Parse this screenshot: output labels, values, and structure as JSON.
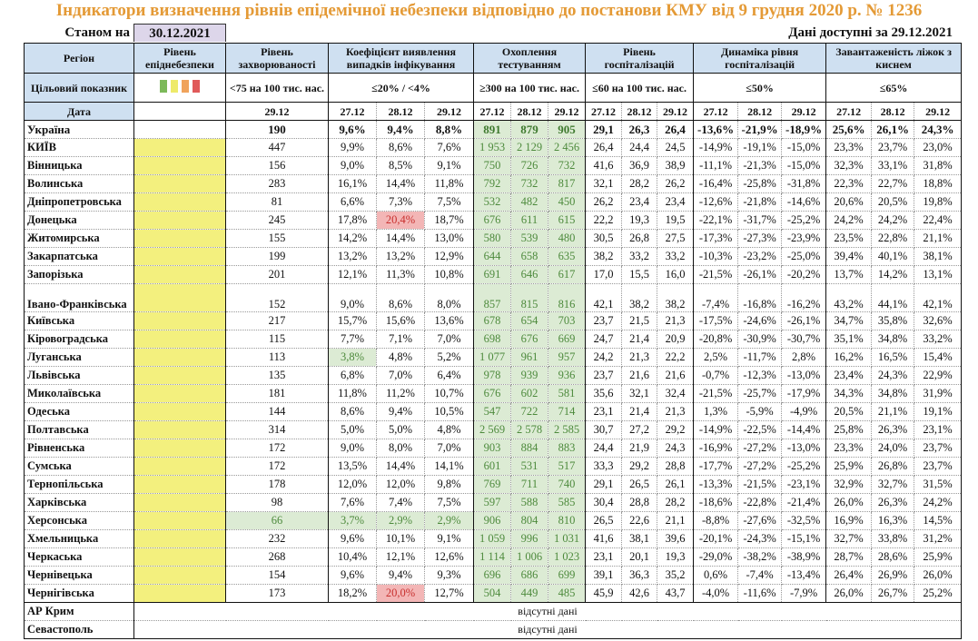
{
  "title": "Індикатори визначення рівнів епідемічної небезпеки відповідно до постанови КМУ від 9 грудня 2020 р. № 1236",
  "as_of_label": "Станом на",
  "as_of_date": "30.12.2021",
  "available_label": "Дані доступні за  29.12.2021",
  "colors": {
    "title": "#e49a36",
    "yellow": "#f3f07e",
    "green_fill": "#dcebd4",
    "red_fill": "#f3b6b6",
    "header": "#cfe0f1",
    "legend": [
      "#7cb95a",
      "#eeea6a",
      "#f0a35c",
      "#e05a5a"
    ]
  },
  "headers": {
    "region": "Регіон",
    "level": "Рівень епіднебезпеки",
    "incidence": "Рівень захворюваності",
    "coef": "Коефіцієнт виявлення випадків інфікування",
    "testing": "Охоплення тестуванням",
    "hosp": "Рівень госпіталізацій",
    "dyn": "Динаміка рівня госпіталізацій",
    "beds": "Завантаженість ліжок з киснем",
    "target_label": "Цільовий показник",
    "target_incidence": "<75 на 100 тис. нас.",
    "target_coef": "≤20% / <4%",
    "target_testing": "≥300 на 100 тис. нас.",
    "target_hosp": "≤60 на 100 тис. нас.",
    "target_dyn": "≤50%",
    "target_beds": "≤65%",
    "date_label": "Дата",
    "incidence_date": "29.12",
    "dates": [
      "27.12",
      "28.12",
      "29.12"
    ]
  },
  "ukraine": {
    "name": "Україна",
    "incidence": "190",
    "coef": [
      "9,6%",
      "9,4%",
      "8,8%"
    ],
    "testing": [
      "891",
      "879",
      "905"
    ],
    "hosp": [
      "29,1",
      "26,3",
      "26,4"
    ],
    "dyn": [
      "-13,6%",
      "-21,9%",
      "-18,9%"
    ],
    "beds": [
      "25,6%",
      "26,1%",
      "24,3%"
    ]
  },
  "regions": [
    {
      "name": "КИЇВ",
      "incidence": "447",
      "coef": [
        "9,9%",
        "8,6%",
        "7,6%"
      ],
      "testing": [
        "1 953",
        "2 129",
        "2 456"
      ],
      "hosp": [
        "26,4",
        "24,4",
        "24,5"
      ],
      "dyn": [
        "-14,9%",
        "-19,1%",
        "-15,0%"
      ],
      "beds": [
        "23,3%",
        "23,7%",
        "23,0%"
      ]
    },
    {
      "name": "Вінницька",
      "incidence": "156",
      "coef": [
        "9,0%",
        "8,5%",
        "9,1%"
      ],
      "testing": [
        "750",
        "726",
        "732"
      ],
      "hosp": [
        "41,6",
        "36,9",
        "38,9"
      ],
      "dyn": [
        "-11,1%",
        "-21,3%",
        "-15,0%"
      ],
      "beds": [
        "32,3%",
        "33,1%",
        "31,8%"
      ]
    },
    {
      "name": "Волинська",
      "incidence": "283",
      "coef": [
        "16,1%",
        "14,4%",
        "11,8%"
      ],
      "testing": [
        "792",
        "732",
        "817"
      ],
      "hosp": [
        "32,1",
        "28,2",
        "26,2"
      ],
      "dyn": [
        "-16,4%",
        "-25,8%",
        "-31,8%"
      ],
      "beds": [
        "22,3%",
        "22,7%",
        "18,8%"
      ]
    },
    {
      "name": "Дніпропетровська",
      "incidence": "81",
      "coef": [
        "6,6%",
        "7,3%",
        "7,5%"
      ],
      "testing": [
        "532",
        "482",
        "450"
      ],
      "hosp": [
        "26,2",
        "23,4",
        "23,4"
      ],
      "dyn": [
        "-12,6%",
        "-21,8%",
        "-14,6%"
      ],
      "beds": [
        "20,6%",
        "20,5%",
        "19,8%"
      ]
    },
    {
      "name": "Донецька",
      "incidence": "245",
      "coef": [
        "17,8%",
        "20,4%",
        "18,7%"
      ],
      "coef_flags": [
        "",
        "red",
        ""
      ],
      "testing": [
        "676",
        "611",
        "615"
      ],
      "hosp": [
        "22,2",
        "19,3",
        "19,5"
      ],
      "dyn": [
        "-22,1%",
        "-31,7%",
        "-25,2%"
      ],
      "beds": [
        "24,2%",
        "24,2%",
        "22,4%"
      ]
    },
    {
      "name": "Житомирська",
      "incidence": "155",
      "coef": [
        "14,2%",
        "14,4%",
        "13,0%"
      ],
      "testing": [
        "580",
        "539",
        "480"
      ],
      "hosp": [
        "30,5",
        "26,8",
        "27,5"
      ],
      "dyn": [
        "-17,3%",
        "-27,3%",
        "-23,9%"
      ],
      "beds": [
        "23,5%",
        "22,8%",
        "21,1%"
      ]
    },
    {
      "name": "Закарпатська",
      "incidence": "199",
      "coef": [
        "13,2%",
        "13,2%",
        "12,9%"
      ],
      "testing": [
        "644",
        "658",
        "635"
      ],
      "hosp": [
        "38,2",
        "33,2",
        "33,2"
      ],
      "dyn": [
        "-10,3%",
        "-23,2%",
        "-25,0%"
      ],
      "beds": [
        "39,4%",
        "40,1%",
        "38,1%"
      ]
    },
    {
      "name": "Запорізька",
      "incidence": "201",
      "coef": [
        "12,1%",
        "11,3%",
        "10,8%"
      ],
      "testing": [
        "691",
        "646",
        "617"
      ],
      "hosp": [
        "17,0",
        "15,5",
        "16,0"
      ],
      "dyn": [
        "-21,5%",
        "-26,1%",
        "-20,2%"
      ],
      "beds": [
        "13,7%",
        "14,2%",
        "13,1%"
      ]
    },
    {
      "name": "Івано-Франківська",
      "tall": true,
      "incidence": "152",
      "coef": [
        "9,0%",
        "8,6%",
        "8,0%"
      ],
      "testing": [
        "857",
        "815",
        "816"
      ],
      "hosp": [
        "42,1",
        "38,2",
        "38,2"
      ],
      "dyn": [
        "-7,4%",
        "-16,8%",
        "-16,2%"
      ],
      "beds": [
        "43,2%",
        "44,1%",
        "42,1%"
      ]
    },
    {
      "name": "Київська",
      "incidence": "217",
      "coef": [
        "15,7%",
        "15,6%",
        "13,6%"
      ],
      "testing": [
        "678",
        "654",
        "703"
      ],
      "hosp": [
        "23,7",
        "21,5",
        "21,3"
      ],
      "dyn": [
        "-17,5%",
        "-24,6%",
        "-26,1%"
      ],
      "beds": [
        "34,7%",
        "35,8%",
        "32,6%"
      ]
    },
    {
      "name": "Кіровоградська",
      "incidence": "115",
      "coef": [
        "7,7%",
        "7,1%",
        "7,0%"
      ],
      "testing": [
        "698",
        "676",
        "669"
      ],
      "hosp": [
        "24,7",
        "21,4",
        "20,9"
      ],
      "dyn": [
        "-20,8%",
        "-30,9%",
        "-30,7%"
      ],
      "beds": [
        "35,1%",
        "34,8%",
        "33,2%"
      ]
    },
    {
      "name": "Луганська",
      "incidence": "113",
      "coef": [
        "3,8%",
        "4,8%",
        "5,2%"
      ],
      "coef_flags": [
        "green",
        "",
        ""
      ],
      "testing": [
        "1 077",
        "961",
        "957"
      ],
      "hosp": [
        "24,2",
        "21,3",
        "22,2"
      ],
      "dyn": [
        "2,5%",
        "-11,7%",
        "2,8%"
      ],
      "beds": [
        "16,2%",
        "16,5%",
        "15,4%"
      ]
    },
    {
      "name": "Львівська",
      "incidence": "135",
      "coef": [
        "6,8%",
        "7,0%",
        "6,4%"
      ],
      "testing": [
        "978",
        "939",
        "936"
      ],
      "hosp": [
        "23,7",
        "21,6",
        "21,6"
      ],
      "dyn": [
        "-0,7%",
        "-12,3%",
        "-13,0%"
      ],
      "beds": [
        "23,4%",
        "24,3%",
        "22,9%"
      ]
    },
    {
      "name": "Миколаївська",
      "incidence": "181",
      "coef": [
        "11,8%",
        "11,2%",
        "10,7%"
      ],
      "testing": [
        "676",
        "602",
        "581"
      ],
      "hosp": [
        "35,6",
        "32,1",
        "32,4"
      ],
      "dyn": [
        "-21,5%",
        "-25,7%",
        "-17,9%"
      ],
      "beds": [
        "34,3%",
        "34,8%",
        "31,9%"
      ]
    },
    {
      "name": "Одеська",
      "incidence": "144",
      "coef": [
        "8,6%",
        "9,4%",
        "10,5%"
      ],
      "testing": [
        "547",
        "722",
        "714"
      ],
      "hosp": [
        "23,1",
        "21,4",
        "21,3"
      ],
      "dyn": [
        "1,3%",
        "-5,9%",
        "-4,9%"
      ],
      "beds": [
        "20,5%",
        "21,1%",
        "19,1%"
      ]
    },
    {
      "name": "Полтавська",
      "incidence": "314",
      "coef": [
        "5,0%",
        "5,0%",
        "4,8%"
      ],
      "testing": [
        "2 569",
        "2 578",
        "2 585"
      ],
      "hosp": [
        "30,7",
        "27,2",
        "29,2"
      ],
      "dyn": [
        "-14,9%",
        "-22,5%",
        "-14,4%"
      ],
      "beds": [
        "25,8%",
        "26,3%",
        "23,1%"
      ]
    },
    {
      "name": "Рівненська",
      "incidence": "172",
      "coef": [
        "9,0%",
        "8,0%",
        "7,0%"
      ],
      "testing": [
        "903",
        "884",
        "883"
      ],
      "hosp": [
        "24,4",
        "21,9",
        "24,3"
      ],
      "dyn": [
        "-16,9%",
        "-27,2%",
        "-13,0%"
      ],
      "beds": [
        "23,3%",
        "24,0%",
        "23,7%"
      ]
    },
    {
      "name": "Сумська",
      "incidence": "172",
      "coef": [
        "13,5%",
        "14,4%",
        "14,1%"
      ],
      "testing": [
        "601",
        "531",
        "517"
      ],
      "hosp": [
        "33,3",
        "29,2",
        "28,8"
      ],
      "dyn": [
        "-17,7%",
        "-27,2%",
        "-25,2%"
      ],
      "beds": [
        "25,9%",
        "26,8%",
        "23,7%"
      ]
    },
    {
      "name": "Тернопільська",
      "incidence": "178",
      "coef": [
        "12,0%",
        "12,0%",
        "9,8%"
      ],
      "testing": [
        "769",
        "711",
        "740"
      ],
      "hosp": [
        "29,1",
        "26,5",
        "26,1"
      ],
      "dyn": [
        "-13,3%",
        "-21,5%",
        "-23,1%"
      ],
      "beds": [
        "32,9%",
        "32,7%",
        "31,5%"
      ]
    },
    {
      "name": "Харківська",
      "incidence": "98",
      "coef": [
        "7,6%",
        "7,4%",
        "7,5%"
      ],
      "testing": [
        "597",
        "588",
        "585"
      ],
      "hosp": [
        "30,4",
        "28,8",
        "28,2"
      ],
      "dyn": [
        "-18,6%",
        "-22,8%",
        "-21,4%"
      ],
      "beds": [
        "26,0%",
        "26,3%",
        "24,2%"
      ]
    },
    {
      "name": "Херсонська",
      "incidence": "66",
      "incidence_flag": "green",
      "coef": [
        "3,7%",
        "2,9%",
        "2,9%"
      ],
      "coef_flags": [
        "green",
        "green",
        "green"
      ],
      "testing": [
        "906",
        "804",
        "810"
      ],
      "hosp": [
        "26,5",
        "22,6",
        "21,1"
      ],
      "dyn": [
        "-8,8%",
        "-27,6%",
        "-32,5%"
      ],
      "beds": [
        "16,9%",
        "16,3%",
        "14,5%"
      ]
    },
    {
      "name": "Хмельницька",
      "incidence": "232",
      "coef": [
        "9,6%",
        "10,1%",
        "9,1%"
      ],
      "testing": [
        "1 059",
        "996",
        "1 031"
      ],
      "hosp": [
        "41,6",
        "38,1",
        "39,6"
      ],
      "dyn": [
        "-20,1%",
        "-24,3%",
        "-15,1%"
      ],
      "beds": [
        "32,7%",
        "33,8%",
        "31,2%"
      ]
    },
    {
      "name": "Черкаська",
      "incidence": "268",
      "coef": [
        "10,4%",
        "12,1%",
        "12,6%"
      ],
      "testing": [
        "1 114",
        "1 006",
        "1 023"
      ],
      "hosp": [
        "23,1",
        "20,1",
        "19,3"
      ],
      "dyn": [
        "-29,0%",
        "-38,2%",
        "-38,9%"
      ],
      "beds": [
        "28,7%",
        "28,6%",
        "25,9%"
      ]
    },
    {
      "name": "Чернівецька",
      "incidence": "154",
      "coef": [
        "9,6%",
        "9,4%",
        "9,3%"
      ],
      "testing": [
        "696",
        "686",
        "699"
      ],
      "hosp": [
        "39,1",
        "36,3",
        "35,2"
      ],
      "dyn": [
        "0,6%",
        "-7,4%",
        "-13,4%"
      ],
      "beds": [
        "26,4%",
        "26,9%",
        "26,0%"
      ]
    },
    {
      "name": "Чернігівська",
      "incidence": "173",
      "coef": [
        "18,2%",
        "20,0%",
        "12,7%"
      ],
      "coef_flags": [
        "",
        "red",
        ""
      ],
      "testing": [
        "504",
        "449",
        "485"
      ],
      "hosp": [
        "45,9",
        "42,6",
        "43,7"
      ],
      "dyn": [
        "-4,0%",
        "-11,6%",
        "-7,9%"
      ],
      "beds": [
        "26,0%",
        "26,7%",
        "25,2%"
      ]
    }
  ],
  "missing": [
    {
      "name": "АР Крим",
      "text": "відсутні дані"
    },
    {
      "name": "Севастополь",
      "text": "відсутні дані"
    }
  ]
}
